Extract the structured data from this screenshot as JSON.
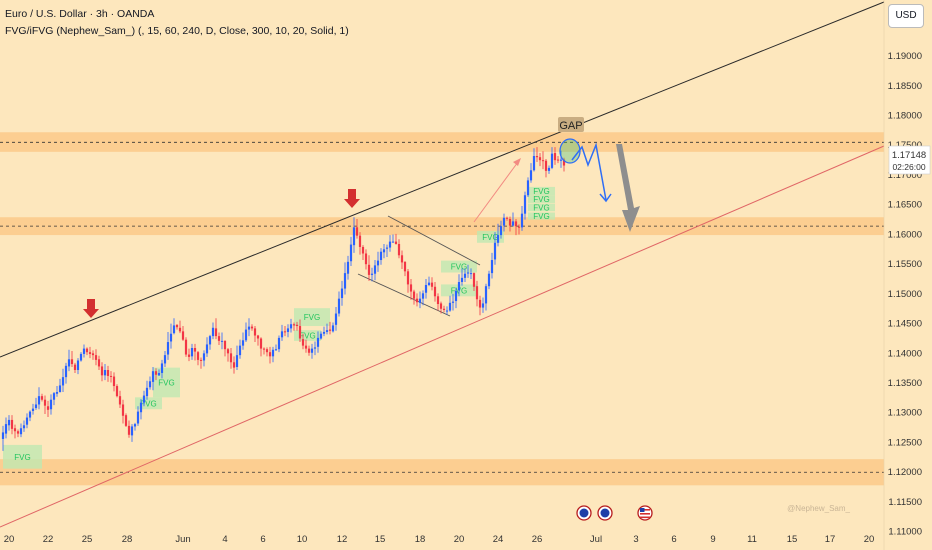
{
  "header": {
    "title": "Euro / U.S. Dollar · 3h · OANDA",
    "indicator": "FVG/iFVG (Nephew_Sam_) (, 15, 60, 240, D, Close, 300, 10, 20, Solid, 1)"
  },
  "currency_button": "USD",
  "watermark": "@Nephew_Sam_",
  "colors": {
    "background": "#fde7bd",
    "zone": "#fbc98a",
    "bull_candle": "#2962ff",
    "bear_candle": "#f23645",
    "fvg_box": "#bfe8b2",
    "fvg_text": "#22c55e",
    "arrow_red": "#d32f2f",
    "arrow_gray": "#8e8e8e",
    "path_blue": "#2f6ef5"
  },
  "chart_data": {
    "type": "candlestick",
    "symbol": "EURUSD",
    "timeframe": "3h",
    "ylim": [
      1.1085,
      1.198
    ],
    "y_ticks": [
      "1.19000",
      "1.18500",
      "1.18000",
      "1.17500",
      "1.17000",
      "1.16500",
      "1.16000",
      "1.15500",
      "1.15000",
      "1.14500",
      "1.14000",
      "1.13500",
      "1.13000",
      "1.12500",
      "1.12000",
      "1.11500",
      "1.11000"
    ],
    "x_ticks": [
      "20",
      "22",
      "25",
      "28",
      "Jun",
      "4",
      "6",
      "10",
      "12",
      "15",
      "18",
      "20",
      "24",
      "26",
      "Jul",
      "3",
      "6",
      "9",
      "11",
      "15",
      "17",
      "20"
    ],
    "last_price": "1.17148",
    "countdown": "02:26:00",
    "zones": [
      {
        "from": 1.1738,
        "to": 1.1771,
        "mid": 1.1754
      },
      {
        "from": 1.1598,
        "to": 1.1628,
        "mid": 1.1613
      },
      {
        "from": 1.1177,
        "to": 1.1221,
        "mid": 1.1199
      }
    ],
    "gap_label": "GAP",
    "fvg_label": "FVG",
    "candles": [
      [
        1.1255,
        1.1266,
        1.1235,
        1.1277
      ],
      [
        1.1264,
        1.128,
        1.1256,
        1.1291
      ],
      [
        1.1278,
        1.1287,
        1.1269,
        1.1295
      ],
      [
        1.1287,
        1.1272,
        1.1263,
        1.1295
      ],
      [
        1.1273,
        1.1268,
        1.1256,
        1.1279
      ],
      [
        1.1268,
        1.1264,
        1.1258,
        1.1271
      ],
      [
        1.1263,
        1.1273,
        1.1258,
        1.1281
      ],
      [
        1.1273,
        1.1278,
        1.1267,
        1.1286
      ],
      [
        1.1279,
        1.1291,
        1.1273,
        1.1298
      ],
      [
        1.1291,
        1.1301,
        1.1285,
        1.1303
      ],
      [
        1.1302,
        1.1306,
        1.1296,
        1.1314
      ],
      [
        1.1307,
        1.1313,
        1.1304,
        1.1324
      ],
      [
        1.1313,
        1.1327,
        1.1305,
        1.1342
      ],
      [
        1.1327,
        1.1321,
        1.1318,
        1.1331
      ],
      [
        1.1321,
        1.1311,
        1.1297,
        1.1328
      ],
      [
        1.131,
        1.1304,
        1.1292,
        1.1319
      ],
      [
        1.1305,
        1.1321,
        1.1296,
        1.133
      ],
      [
        1.1321,
        1.1332,
        1.1312,
        1.1334
      ],
      [
        1.1331,
        1.1334,
        1.1326,
        1.1344
      ],
      [
        1.1334,
        1.1345,
        1.1333,
        1.1356
      ],
      [
        1.1345,
        1.1359,
        1.1334,
        1.1373
      ],
      [
        1.1359,
        1.1378,
        1.1348,
        1.1383
      ],
      [
        1.1377,
        1.1389,
        1.1369,
        1.1405
      ],
      [
        1.1389,
        1.1381,
        1.1376,
        1.1403
      ],
      [
        1.138,
        1.1371,
        1.1366,
        1.1383
      ],
      [
        1.1371,
        1.1387,
        1.1364,
        1.1391
      ],
      [
        1.1387,
        1.1398,
        1.1385,
        1.1401
      ],
      [
        1.1398,
        1.1407,
        1.1392,
        1.1414
      ],
      [
        1.1407,
        1.1401,
        1.1396,
        1.1409
      ],
      [
        1.1401,
        1.1398,
        1.1391,
        1.141
      ],
      [
        1.1399,
        1.1396,
        1.1388,
        1.1404
      ],
      [
        1.1396,
        1.1388,
        1.1379,
        1.1406
      ],
      [
        1.1389,
        1.1377,
        1.1371,
        1.1395
      ],
      [
        1.1377,
        1.1362,
        1.1352,
        1.1384
      ],
      [
        1.1362,
        1.1371,
        1.1354,
        1.1381
      ],
      [
        1.1371,
        1.1361,
        1.1351,
        1.1378
      ],
      [
        1.1361,
        1.136,
        1.135,
        1.1369
      ],
      [
        1.136,
        1.1344,
        1.1335,
        1.1367
      ],
      [
        1.1344,
        1.1327,
        1.1325,
        1.1347
      ],
      [
        1.1327,
        1.1313,
        1.1307,
        1.1336
      ],
      [
        1.1313,
        1.1294,
        1.1281,
        1.1321
      ],
      [
        1.1295,
        1.1277,
        1.1275,
        1.1298
      ],
      [
        1.1277,
        1.1262,
        1.1257,
        1.1286
      ],
      [
        1.1261,
        1.1276,
        1.125,
        1.128
      ],
      [
        1.1276,
        1.128,
        1.1269,
        1.1282
      ],
      [
        1.1281,
        1.1301,
        1.1277,
        1.131
      ],
      [
        1.13,
        1.1316,
        1.1288,
        1.1322
      ],
      [
        1.1316,
        1.1328,
        1.131,
        1.1336
      ],
      [
        1.1327,
        1.1341,
        1.1321,
        1.1353
      ],
      [
        1.1342,
        1.1352,
        1.1338,
        1.136
      ],
      [
        1.1351,
        1.1369,
        1.1337,
        1.1376
      ],
      [
        1.1369,
        1.1363,
        1.1354,
        1.1374
      ],
      [
        1.1362,
        1.1366,
        1.1361,
        1.1372
      ],
      [
        1.1366,
        1.1382,
        1.1357,
        1.1388
      ],
      [
        1.1382,
        1.1396,
        1.1376,
        1.1403
      ],
      [
        1.1397,
        1.1418,
        1.1388,
        1.1435
      ],
      [
        1.1419,
        1.1432,
        1.1407,
        1.1449
      ],
      [
        1.1433,
        1.1446,
        1.1431,
        1.1458
      ],
      [
        1.1447,
        1.1443,
        1.1439,
        1.1448
      ],
      [
        1.1442,
        1.1436,
        1.1433,
        1.1454
      ],
      [
        1.1436,
        1.1422,
        1.142,
        1.1445
      ],
      [
        1.1422,
        1.1397,
        1.1393,
        1.1426
      ],
      [
        1.1397,
        1.1393,
        1.1386,
        1.1407
      ],
      [
        1.1394,
        1.1408,
        1.1388,
        1.1415
      ],
      [
        1.1408,
        1.1402,
        1.1387,
        1.1415
      ],
      [
        1.1401,
        1.1388,
        1.1379,
        1.1403
      ],
      [
        1.1388,
        1.1387,
        1.1373,
        1.1392
      ],
      [
        1.1387,
        1.1399,
        1.1377,
        1.1404
      ],
      [
        1.1399,
        1.1414,
        1.1393,
        1.1426
      ],
      [
        1.1414,
        1.1428,
        1.1405,
        1.143
      ],
      [
        1.1428,
        1.1442,
        1.1423,
        1.1451
      ],
      [
        1.1441,
        1.1428,
        1.1423,
        1.1458
      ],
      [
        1.1428,
        1.142,
        1.1413,
        1.1434
      ],
      [
        1.142,
        1.142,
        1.1406,
        1.1434
      ],
      [
        1.142,
        1.1406,
        1.1394,
        1.1421
      ],
      [
        1.1406,
        1.1399,
        1.1385,
        1.1408
      ],
      [
        1.1399,
        1.1384,
        1.1373,
        1.1408
      ],
      [
        1.1384,
        1.1375,
        1.1365,
        1.1394
      ],
      [
        1.1376,
        1.1396,
        1.1371,
        1.1412
      ],
      [
        1.1396,
        1.1412,
        1.139,
        1.1422
      ],
      [
        1.1412,
        1.1421,
        1.1405,
        1.1434
      ],
      [
        1.1421,
        1.1439,
        1.1418,
        1.1451
      ],
      [
        1.1439,
        1.1444,
        1.1428,
        1.1458
      ],
      [
        1.1444,
        1.1441,
        1.1437,
        1.1448
      ],
      [
        1.1441,
        1.1429,
        1.1418,
        1.1445
      ],
      [
        1.1429,
        1.1424,
        1.1412,
        1.143
      ],
      [
        1.1424,
        1.1407,
        1.1394,
        1.1426
      ],
      [
        1.1407,
        1.1406,
        1.1397,
        1.1409
      ],
      [
        1.1406,
        1.1401,
        1.1394,
        1.1409
      ],
      [
        1.1401,
        1.1394,
        1.1382,
        1.141
      ],
      [
        1.1394,
        1.1405,
        1.1384,
        1.141
      ],
      [
        1.1405,
        1.1406,
        1.1403,
        1.1414
      ],
      [
        1.1406,
        1.1425,
        1.1401,
        1.1429
      ],
      [
        1.1426,
        1.1436,
        1.142,
        1.1447
      ],
      [
        1.1436,
        1.1435,
        1.1428,
        1.1445
      ],
      [
        1.1435,
        1.1441,
        1.1426,
        1.1448
      ],
      [
        1.1441,
        1.1448,
        1.1434,
        1.1457
      ],
      [
        1.1448,
        1.1446,
        1.1437,
        1.1451
      ],
      [
        1.1447,
        1.1445,
        1.1437,
        1.1452
      ],
      [
        1.1445,
        1.1424,
        1.1418,
        1.1456
      ],
      [
        1.1423,
        1.1412,
        1.1406,
        1.1432
      ],
      [
        1.1412,
        1.1407,
        1.14,
        1.1422
      ],
      [
        1.1407,
        1.14,
        1.1395,
        1.1412
      ],
      [
        1.14,
        1.1407,
        1.139,
        1.1415
      ],
      [
        1.1407,
        1.1409,
        1.1396,
        1.1419
      ],
      [
        1.141,
        1.1425,
        1.14,
        1.1436
      ],
      [
        1.1424,
        1.1432,
        1.1422,
        1.1436
      ],
      [
        1.1432,
        1.1435,
        1.1428,
        1.1444
      ],
      [
        1.1435,
        1.1438,
        1.1431,
        1.1449
      ],
      [
        1.1439,
        1.1437,
        1.1431,
        1.1452
      ],
      [
        1.1436,
        1.1446,
        1.1434,
        1.1451
      ],
      [
        1.1447,
        1.1466,
        1.1437,
        1.1477
      ],
      [
        1.1466,
        1.1491,
        1.1461,
        1.1503
      ],
      [
        1.1492,
        1.1508,
        1.1479,
        1.1521
      ],
      [
        1.1508,
        1.1534,
        1.1498,
        1.1552
      ],
      [
        1.1533,
        1.1553,
        1.1523,
        1.1563
      ],
      [
        1.1554,
        1.1582,
        1.1546,
        1.1595
      ],
      [
        1.1581,
        1.1611,
        1.1568,
        1.1628
      ],
      [
        1.1611,
        1.1597,
        1.1592,
        1.1625
      ],
      [
        1.1597,
        1.1578,
        1.1565,
        1.1603
      ],
      [
        1.1578,
        1.1567,
        1.1556,
        1.1581
      ],
      [
        1.1567,
        1.1549,
        1.154,
        1.1574
      ],
      [
        1.1548,
        1.1531,
        1.1521,
        1.1564
      ],
      [
        1.1531,
        1.1533,
        1.152,
        1.1543
      ],
      [
        1.1533,
        1.1547,
        1.1522,
        1.1556
      ],
      [
        1.1547,
        1.1555,
        1.1536,
        1.157
      ],
      [
        1.1556,
        1.157,
        1.1548,
        1.1576
      ],
      [
        1.1569,
        1.1574,
        1.1559,
        1.1583
      ],
      [
        1.1575,
        1.1577,
        1.1561,
        1.1582
      ],
      [
        1.1577,
        1.1587,
        1.157,
        1.1598
      ],
      [
        1.1587,
        1.1587,
        1.1585,
        1.1599
      ],
      [
        1.1587,
        1.1583,
        1.1582,
        1.16
      ],
      [
        1.1583,
        1.1564,
        1.1559,
        1.1591
      ],
      [
        1.1564,
        1.1552,
        1.1541,
        1.1572
      ],
      [
        1.1553,
        1.1537,
        1.1529,
        1.1554
      ],
      [
        1.1537,
        1.1515,
        1.1501,
        1.1541
      ],
      [
        1.1515,
        1.1503,
        1.1489,
        1.1524
      ],
      [
        1.1503,
        1.1491,
        1.1481,
        1.1506
      ],
      [
        1.1491,
        1.1485,
        1.1478,
        1.15
      ],
      [
        1.1484,
        1.1491,
        1.1475,
        1.1503
      ],
      [
        1.1491,
        1.15,
        1.148,
        1.1505
      ],
      [
        1.1501,
        1.1514,
        1.1491,
        1.1524
      ],
      [
        1.1514,
        1.1518,
        1.1512,
        1.1528
      ],
      [
        1.1518,
        1.1511,
        1.1505,
        1.1527
      ],
      [
        1.1511,
        1.1495,
        1.1486,
        1.1519
      ],
      [
        1.1495,
        1.1482,
        1.1471,
        1.15
      ],
      [
        1.1483,
        1.1474,
        1.1466,
        1.1486
      ],
      [
        1.1474,
        1.1472,
        1.1468,
        1.1479
      ],
      [
        1.1471,
        1.1471,
        1.1464,
        1.1478
      ],
      [
        1.1471,
        1.1484,
        1.1469,
        1.1496
      ],
      [
        1.1484,
        1.1486,
        1.1471,
        1.1499
      ],
      [
        1.1487,
        1.1504,
        1.1475,
        1.1509
      ],
      [
        1.1505,
        1.1519,
        1.1495,
        1.1532
      ],
      [
        1.1519,
        1.1526,
        1.1513,
        1.1542
      ],
      [
        1.1526,
        1.1533,
        1.1519,
        1.1542
      ],
      [
        1.1534,
        1.1535,
        1.1526,
        1.1548
      ],
      [
        1.1534,
        1.1534,
        1.1524,
        1.1542
      ],
      [
        1.1534,
        1.1511,
        1.1504,
        1.1535
      ],
      [
        1.1512,
        1.149,
        1.1478,
        1.1521
      ],
      [
        1.1489,
        1.1476,
        1.1463,
        1.1496
      ],
      [
        1.1476,
        1.1483,
        1.1467,
        1.1493
      ],
      [
        1.1483,
        1.1512,
        1.1471,
        1.1516
      ],
      [
        1.1512,
        1.1533,
        1.1507,
        1.1538
      ],
      [
        1.1534,
        1.1556,
        1.1525,
        1.1568
      ],
      [
        1.1557,
        1.1585,
        1.1548,
        1.1603
      ],
      [
        1.1585,
        1.1598,
        1.1579,
        1.1617
      ],
      [
        1.1598,
        1.1613,
        1.1592,
        1.1622
      ],
      [
        1.1614,
        1.1627,
        1.1604,
        1.1634
      ],
      [
        1.1627,
        1.1626,
        1.1622,
        1.1629
      ],
      [
        1.1625,
        1.1614,
        1.1604,
        1.1629
      ],
      [
        1.1614,
        1.1621,
        1.1612,
        1.1636
      ],
      [
        1.1621,
        1.1613,
        1.1598,
        1.1625
      ],
      [
        1.1612,
        1.1611,
        1.1599,
        1.1616
      ],
      [
        1.1611,
        1.1634,
        1.1605,
        1.1647
      ],
      [
        1.1634,
        1.1665,
        1.1624,
        1.1671
      ],
      [
        1.1665,
        1.169,
        1.1662,
        1.1695
      ],
      [
        1.169,
        1.1707,
        1.1686,
        1.1719
      ],
      [
        1.1707,
        1.1731,
        1.1705,
        1.1744
      ],
      [
        1.1731,
        1.1729,
        1.1721,
        1.1746
      ],
      [
        1.1729,
        1.1724,
        1.1714,
        1.1736
      ],
      [
        1.1724,
        1.1723,
        1.1709,
        1.1739
      ],
      [
        1.1723,
        1.1706,
        1.1695,
        1.1726
      ],
      [
        1.1706,
        1.1711,
        1.1701,
        1.1715
      ],
      [
        1.1711,
        1.1735,
        1.1709,
        1.1746
      ],
      [
        1.1736,
        1.1724,
        1.1716,
        1.1746
      ],
      [
        1.1725,
        1.1724,
        1.1719,
        1.1731
      ],
      [
        1.1723,
        1.1725,
        1.1711,
        1.174
      ],
      [
        1.1725,
        1.1715,
        1.1705,
        1.1728
      ]
    ],
    "fvg_boxes": [
      {
        "c0": 0,
        "c1": 13,
        "from": 1.1205,
        "to": 1.1245
      },
      {
        "c0": 44,
        "c1": 53,
        "from": 1.1305,
        "to": 1.1325
      },
      {
        "c0": 50,
        "c1": 59,
        "from": 1.1325,
        "to": 1.1375
      },
      {
        "c0": 97,
        "c1": 109,
        "from": 1.1445,
        "to": 1.1475
      },
      {
        "c0": 97,
        "c1": 106,
        "from": 1.142,
        "to": 1.1438
      },
      {
        "c0": 146,
        "c1": 158,
        "from": 1.1535,
        "to": 1.1555
      },
      {
        "c0": 146,
        "c1": 158,
        "from": 1.1495,
        "to": 1.1515
      },
      {
        "c0": 158,
        "c1": 167,
        "from": 1.1585,
        "to": 1.1605
      },
      {
        "c0": 175,
        "c1": 184,
        "from": 1.1665,
        "to": 1.1679
      },
      {
        "c0": 175,
        "c1": 184,
        "from": 1.1652,
        "to": 1.1665
      },
      {
        "c0": 175,
        "c1": 184,
        "from": 1.1638,
        "to": 1.1651
      },
      {
        "c0": 175,
        "c1": 184,
        "from": 1.1624,
        "to": 1.1636
      }
    ]
  }
}
